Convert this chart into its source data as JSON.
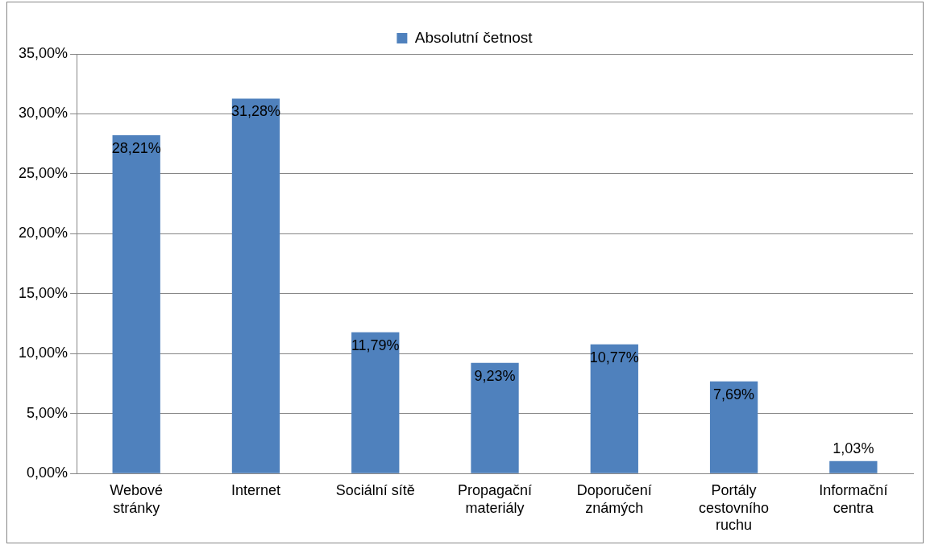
{
  "chart_data": {
    "type": "bar",
    "categories": [
      "Webové stránky",
      "Internet",
      "Sociální sítě",
      "Propagační materiály",
      "Doporučení známých",
      "Portály cestovního ruchu",
      "Informační centra"
    ],
    "series": [
      {
        "name": "Absolutní četnost",
        "color": "#4f81bd",
        "values": [
          28.21,
          31.28,
          11.79,
          9.23,
          10.77,
          7.69,
          1.03
        ],
        "value_labels": [
          "28,21%",
          "31,28%",
          "11,79%",
          "9,23%",
          "10,77%",
          "7,69%",
          "1,03%"
        ]
      }
    ],
    "ylim": [
      0,
      35
    ],
    "yticks": [
      {
        "value": 0,
        "label": "0,00%"
      },
      {
        "value": 5,
        "label": "5,00%"
      },
      {
        "value": 10,
        "label": "10,00%"
      },
      {
        "value": 15,
        "label": "15,00%"
      },
      {
        "value": 20,
        "label": "20,00%"
      },
      {
        "value": 25,
        "label": "25,00%"
      },
      {
        "value": 30,
        "label": "30,00%"
      },
      {
        "value": 35,
        "label": "35,00%"
      }
    ],
    "grid": "y",
    "legend": "top"
  }
}
